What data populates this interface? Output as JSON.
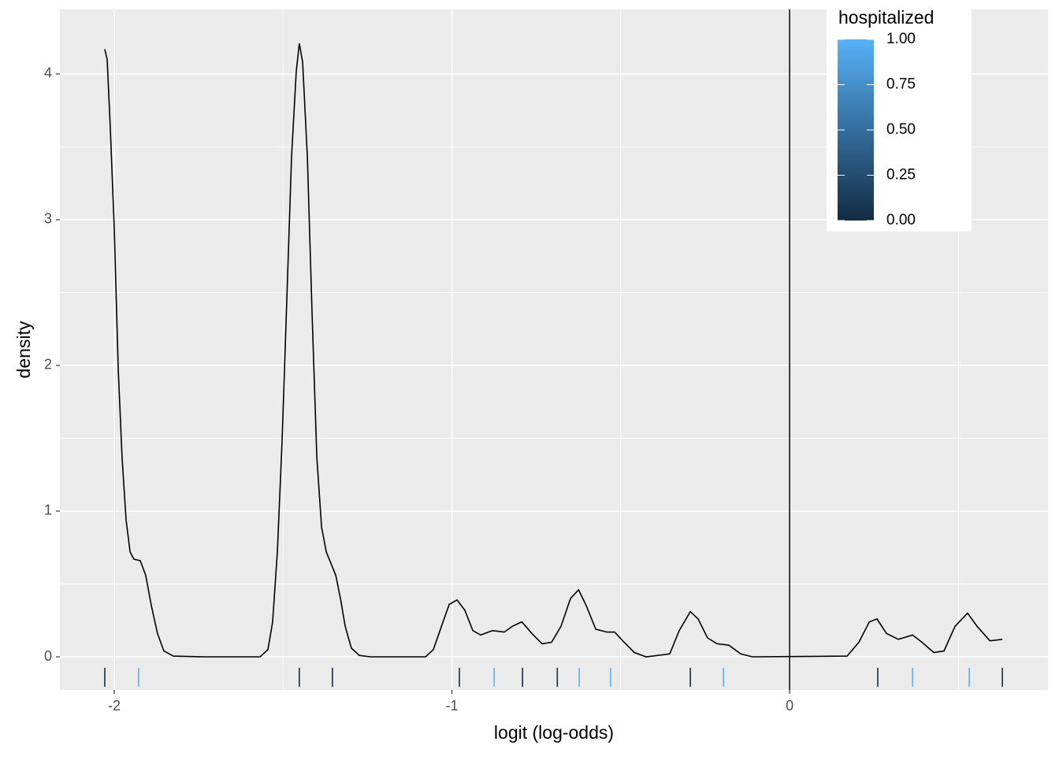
{
  "chart_data": {
    "type": "density",
    "x_label": "logit (log-odds)",
    "y_label": "density",
    "xlim": [
      -2.161,
      0.765
    ],
    "ylim": [
      -0.227,
      4.443
    ],
    "xticks": [
      -2,
      -1,
      0
    ],
    "yticks": [
      0,
      1,
      2,
      3,
      4
    ],
    "grid": true,
    "color": "#000000",
    "vline": 0,
    "x": [
      -2.028,
      -2.021,
      -2.012,
      -2.0,
      -1.988,
      -1.977,
      -1.965,
      -1.953,
      -1.942,
      -1.923,
      -1.907,
      -1.89,
      -1.872,
      -1.853,
      -1.825,
      -1.732,
      -1.568,
      -1.545,
      -1.531,
      -1.517,
      -1.503,
      -1.489,
      -1.475,
      -1.461,
      -1.452,
      -1.442,
      -1.428,
      -1.414,
      -1.4,
      -1.386,
      -1.372,
      -1.358,
      -1.344,
      -1.33,
      -1.316,
      -1.298,
      -1.274,
      -1.242,
      -1.078,
      -1.055,
      -1.031,
      -1.008,
      -0.985,
      -0.962,
      -0.938,
      -0.915,
      -0.88,
      -0.845,
      -0.821,
      -0.793,
      -0.763,
      -0.733,
      -0.705,
      -0.677,
      -0.649,
      -0.625,
      -0.602,
      -0.574,
      -0.541,
      -0.518,
      -0.49,
      -0.46,
      -0.425,
      -0.355,
      -0.327,
      -0.294,
      -0.271,
      -0.243,
      -0.215,
      -0.18,
      -0.145,
      -0.11,
      0.17,
      0.205,
      0.236,
      0.259,
      0.287,
      0.322,
      0.364,
      0.392,
      0.427,
      0.457,
      0.49,
      0.527,
      0.555,
      0.593,
      0.63
    ],
    "values": [
      4.17,
      4.1,
      3.64,
      2.94,
      1.97,
      1.37,
      0.94,
      0.72,
      0.67,
      0.66,
      0.56,
      0.35,
      0.16,
      0.04,
      0.005,
      0,
      0,
      0.05,
      0.24,
      0.72,
      1.48,
      2.45,
      3.43,
      4.02,
      4.21,
      4.08,
      3.43,
      2.35,
      1.37,
      0.89,
      0.72,
      0.64,
      0.56,
      0.4,
      0.21,
      0.06,
      0.01,
      0,
      0,
      0.05,
      0.21,
      0.36,
      0.39,
      0.32,
      0.18,
      0.15,
      0.18,
      0.17,
      0.21,
      0.24,
      0.16,
      0.09,
      0.1,
      0.21,
      0.4,
      0.46,
      0.35,
      0.19,
      0.17,
      0.17,
      0.1,
      0.03,
      0,
      0.02,
      0.18,
      0.31,
      0.26,
      0.13,
      0.09,
      0.08,
      0.02,
      0,
      0.005,
      0.1,
      0.24,
      0.26,
      0.16,
      0.12,
      0.15,
      0.1,
      0.03,
      0.04,
      0.21,
      0.3,
      0.21,
      0.11,
      0.12
    ],
    "rug": {
      "x": [
        -2.028,
        -1.928,
        -1.452,
        -1.354,
        -0.978,
        -0.875,
        -0.791,
        -0.688,
        -0.623,
        -0.53,
        -0.294,
        -0.196,
        0.261,
        0.364,
        0.532,
        0.63
      ],
      "values": [
        0,
        1,
        0,
        0,
        0,
        1,
        0,
        0,
        1,
        1,
        0,
        1,
        0,
        1,
        1,
        0
      ]
    },
    "legend": {
      "title": "hospitalized",
      "position": "top-right",
      "colors": [
        "#132B43",
        "#56B1F7"
      ],
      "range": [
        0,
        1
      ],
      "ticks": [
        {
          "value": 0,
          "label": "0.00"
        },
        {
          "value": 0.25,
          "label": "0.25"
        },
        {
          "value": 0.5,
          "label": "0.50"
        },
        {
          "value": 0.75,
          "label": "0.75"
        },
        {
          "value": 1,
          "label": "1.00"
        }
      ]
    }
  }
}
